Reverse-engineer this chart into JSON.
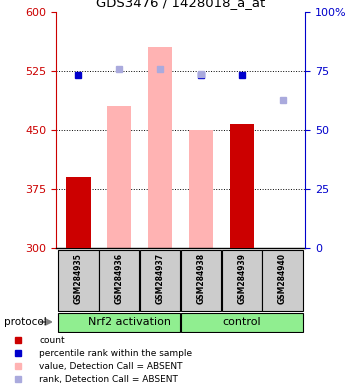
{
  "title": "GDS3476 / 1428018_a_at",
  "samples": [
    "GSM284935",
    "GSM284936",
    "GSM284937",
    "GSM284938",
    "GSM284939",
    "GSM284940"
  ],
  "group_label_1": "Nrf2 activation",
  "group_label_2": "control",
  "group_split": 3,
  "left_ylim": [
    300,
    600
  ],
  "left_yticks": [
    300,
    375,
    450,
    525,
    600
  ],
  "right_ylim": [
    0,
    100
  ],
  "right_yticks": [
    0,
    25,
    50,
    75,
    100
  ],
  "bar_heights_red": [
    390,
    null,
    null,
    null,
    457,
    null
  ],
  "bar_heights_pink": [
    null,
    480,
    555,
    450,
    null,
    null
  ],
  "dot_blue_dark": [
    519,
    null,
    null,
    519,
    519,
    null
  ],
  "dot_blue_light": [
    null,
    527,
    527,
    521,
    null,
    487
  ],
  "bar_color_red": "#cc0000",
  "bar_color_pink": "#ffb3b3",
  "dot_color_dark_blue": "#0000cc",
  "dot_color_light_blue": "#aaaadd",
  "left_tick_color": "#cc0000",
  "right_tick_color": "#0000cc",
  "protocol_label": "protocol",
  "legend_items": [
    {
      "color": "#cc0000",
      "label": "count"
    },
    {
      "color": "#0000cc",
      "label": "percentile rank within the sample"
    },
    {
      "color": "#ffb3b3",
      "label": "value, Detection Call = ABSENT"
    },
    {
      "color": "#aaaadd",
      "label": "rank, Detection Call = ABSENT"
    }
  ]
}
